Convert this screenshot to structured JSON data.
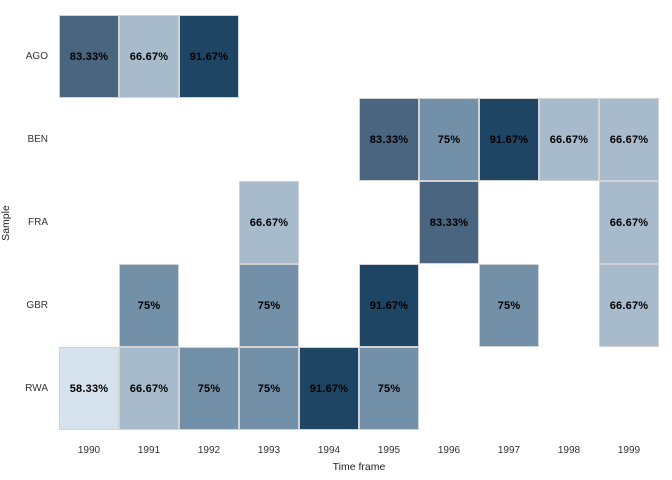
{
  "chart_data": {
    "type": "heatmap",
    "title": "",
    "xlabel": "Time frame",
    "ylabel": "Sample",
    "x_categories": [
      "1990",
      "1991",
      "1992",
      "1993",
      "1994",
      "1995",
      "1996",
      "1997",
      "1998",
      "1999"
    ],
    "y_categories": [
      "AGO",
      "BEN",
      "FRA",
      "GBR",
      "RWA"
    ],
    "grid": "off",
    "legend": "none",
    "background_color": "#ffffff",
    "cell_border_color": "#D3D3D3",
    "value_colors": {
      "58.33": "#D6E2ED",
      "66.67": "#A7BBCD",
      "75": "#7290A8",
      "83.33": "#49657F",
      "91.67": "#1F4565"
    },
    "cells": [
      {
        "row": "AGO",
        "x": "1990",
        "value": 83.33,
        "label": "83.33%"
      },
      {
        "row": "AGO",
        "x": "1991",
        "value": 66.67,
        "label": "66.67%"
      },
      {
        "row": "AGO",
        "x": "1992",
        "value": 91.67,
        "label": "91.67%"
      },
      {
        "row": "BEN",
        "x": "1995",
        "value": 83.33,
        "label": "83.33%"
      },
      {
        "row": "BEN",
        "x": "1996",
        "value": 75,
        "label": "75%"
      },
      {
        "row": "BEN",
        "x": "1997",
        "value": 91.67,
        "label": "91.67%"
      },
      {
        "row": "BEN",
        "x": "1998",
        "value": 66.67,
        "label": "66.67%"
      },
      {
        "row": "BEN",
        "x": "1999",
        "value": 66.67,
        "label": "66.67%"
      },
      {
        "row": "FRA",
        "x": "1993",
        "value": 66.67,
        "label": "66.67%"
      },
      {
        "row": "FRA",
        "x": "1996",
        "value": 83.33,
        "label": "83.33%"
      },
      {
        "row": "FRA",
        "x": "1999",
        "value": 66.67,
        "label": "66.67%"
      },
      {
        "row": "GBR",
        "x": "1991",
        "value": 75,
        "label": "75%"
      },
      {
        "row": "GBR",
        "x": "1993",
        "value": 75,
        "label": "75%"
      },
      {
        "row": "GBR",
        "x": "1995",
        "value": 91.67,
        "label": "91.67%"
      },
      {
        "row": "GBR",
        "x": "1997",
        "value": 75,
        "label": "75%"
      },
      {
        "row": "GBR",
        "x": "1999",
        "value": 66.67,
        "label": "66.67%"
      },
      {
        "row": "RWA",
        "x": "1990",
        "value": 58.33,
        "label": "58.33%"
      },
      {
        "row": "RWA",
        "x": "1991",
        "value": 66.67,
        "label": "66.67%"
      },
      {
        "row": "RWA",
        "x": "1992",
        "value": 75,
        "label": "75%"
      },
      {
        "row": "RWA",
        "x": "1993",
        "value": 75,
        "label": "75%"
      },
      {
        "row": "RWA",
        "x": "1994",
        "value": 91.67,
        "label": "91.67%"
      },
      {
        "row": "RWA",
        "x": "1995",
        "value": 75,
        "label": "75%"
      }
    ]
  }
}
